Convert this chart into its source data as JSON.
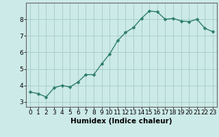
{
  "x": [
    0,
    1,
    2,
    3,
    4,
    5,
    6,
    7,
    8,
    9,
    10,
    11,
    12,
    13,
    14,
    15,
    16,
    17,
    18,
    19,
    20,
    21,
    22,
    23
  ],
  "y": [
    3.6,
    3.5,
    3.3,
    3.85,
    4.0,
    3.9,
    4.2,
    4.65,
    4.65,
    5.3,
    5.9,
    6.7,
    7.2,
    7.5,
    8.05,
    8.5,
    8.45,
    8.0,
    8.05,
    7.9,
    7.85,
    8.0,
    7.45,
    7.25
  ],
  "line_color": "#2e7d6e",
  "marker": "D",
  "marker_size": 2.5,
  "line_width": 1.0,
  "bg_color": "#cceae7",
  "grid_color": "#aacfcc",
  "xlabel": "Humidex (Indice chaleur)",
  "xlabel_fontsize": 7.5,
  "xlabel_fontweight": "bold",
  "xlim": [
    -0.5,
    23.5
  ],
  "ylim": [
    2.7,
    9.0
  ],
  "yticks": [
    3,
    4,
    5,
    6,
    7,
    8
  ],
  "xticks": [
    0,
    1,
    2,
    3,
    4,
    5,
    6,
    7,
    8,
    9,
    10,
    11,
    12,
    13,
    14,
    15,
    16,
    17,
    18,
    19,
    20,
    21,
    22,
    23
  ],
  "tick_fontsize": 6.5,
  "spine_color": "#666666"
}
